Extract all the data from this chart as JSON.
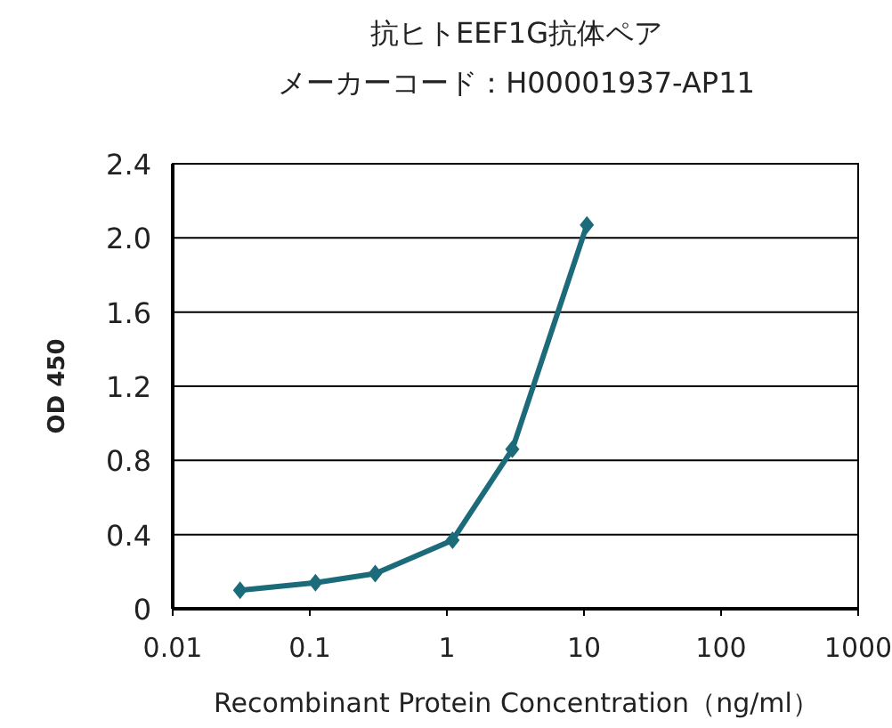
{
  "chart_data": {
    "type": "line",
    "title": "抗ヒトEEF1G抗体ペア",
    "subtitle": "メーカーコード：H00001937-AP11",
    "xlabel": "Recombinant Protein Concentration（ng/ml）",
    "ylabel": "OD 450",
    "x": [
      0.031,
      0.11,
      0.3,
      1.1,
      3.0,
      10.5
    ],
    "series": [
      {
        "color": "#1c6b7a",
        "values": [
          0.1,
          0.14,
          0.19,
          0.37,
          0.86,
          2.07
        ]
      }
    ],
    "log": "x",
    "xlim": [
      0.01,
      1000
    ],
    "xticks": [
      0.01,
      0.1,
      1,
      10,
      100,
      1000
    ],
    "ylim": [
      0,
      2.4
    ],
    "yticks": [
      0,
      0.4,
      0.8,
      1.2,
      1.6,
      {
        "value": 2,
        "label": "2.0"
      },
      2.4
    ],
    "grid": "y",
    "marker": "diamond",
    "line_style": "solid"
  }
}
